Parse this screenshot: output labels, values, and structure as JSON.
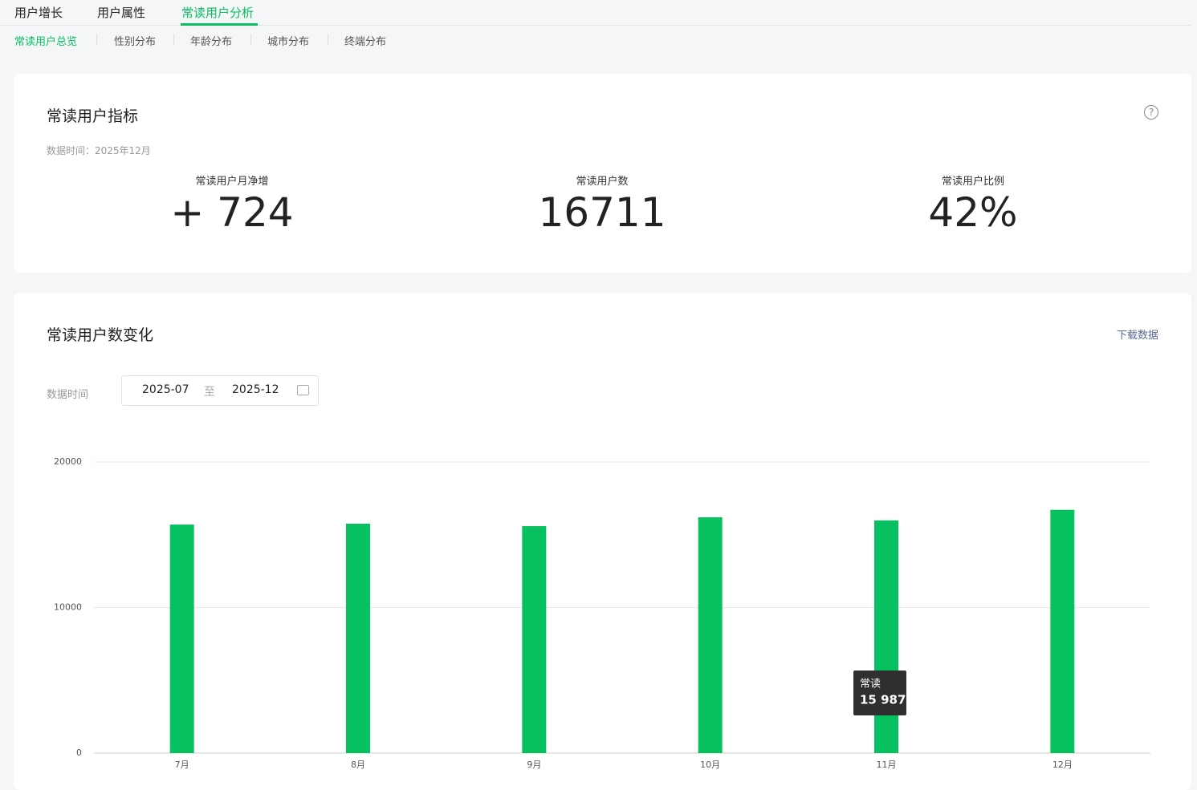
{
  "tabs": [
    "用户增长",
    "用户属性",
    "常读用户分析"
  ],
  "sub_tabs": [
    "常读用户总览",
    "性别分布",
    "年龄分布",
    "城市分布",
    "终端分布"
  ],
  "metrics_card": {
    "title": "常读用户指标",
    "data_time": "数据时间：2025年12月",
    "metrics": [
      {
        "label": "常读用户月净增",
        "value": "+ 724"
      },
      {
        "label": "常读用户数",
        "value": "16711"
      },
      {
        "label": "常读用户比例",
        "value": "42%"
      }
    ]
  },
  "chart_card": {
    "title": "常读用户数变化",
    "download": "下载数据",
    "date_label": "数据时间",
    "date_start": "2025-07",
    "date_separator": "至",
    "date_end": "2025-12"
  },
  "chart_data": {
    "type": "bar",
    "categories": [
      "7月",
      "8月",
      "9月",
      "10月",
      "11月",
      "12月"
    ],
    "series": [
      {
        "name": "常读",
        "color": "#07c160",
        "values": [
          15700,
          15760,
          15590,
          16200,
          15987,
          16711
        ]
      }
    ],
    "ylim": [
      0,
      20000
    ],
    "yticks": [
      0,
      10000,
      20000
    ],
    "grid": true,
    "tooltip": {
      "category": "11月",
      "label": "15 987"
    }
  }
}
